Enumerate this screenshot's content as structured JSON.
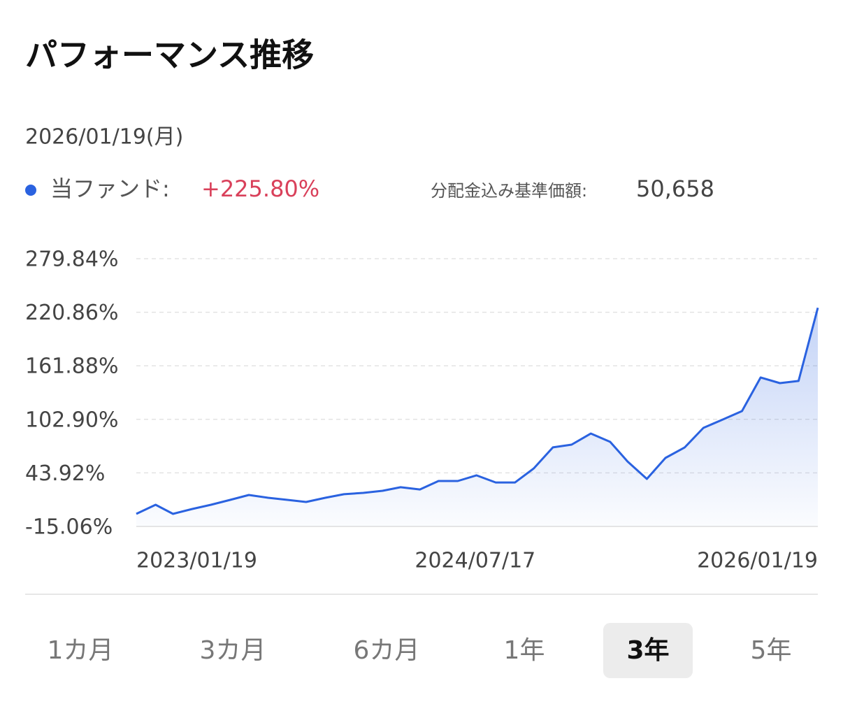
{
  "header": {
    "title": "パフォーマンス推移",
    "date": "2026/01/19(月)"
  },
  "legend": {
    "fund_label": "当ファンド:",
    "fund_value": "+225.80%",
    "price_label": "分配金込み基準価額:",
    "price_value": "50,658"
  },
  "chart_data": {
    "type": "line",
    "x": [
      "2023/01/19",
      "2023/02/19",
      "2023/03/19",
      "2023/04/19",
      "2023/05/19",
      "2023/06/19",
      "2023/07/19",
      "2023/08/19",
      "2023/09/19",
      "2023/10/19",
      "2023/11/19",
      "2023/12/19",
      "2024/01/19",
      "2024/02/19",
      "2024/03/19",
      "2024/04/19",
      "2024/05/19",
      "2024/06/19",
      "2024/07/19",
      "2024/08/19",
      "2024/09/19",
      "2024/10/19",
      "2024/11/19",
      "2024/12/19",
      "2025/01/19",
      "2025/02/19",
      "2025/03/19",
      "2025/04/19",
      "2025/05/19",
      "2025/06/19",
      "2025/07/19",
      "2025/08/19",
      "2025/09/19",
      "2025/10/19",
      "2025/11/19",
      "2025/12/19",
      "2026/01/19"
    ],
    "series": [
      {
        "name": "当ファンド",
        "color": "#2a62e0",
        "values": [
          -1.2,
          8.8,
          -1.2,
          4.2,
          8.8,
          14.2,
          19.6,
          16.5,
          14.2,
          11.9,
          16.5,
          20.4,
          21.9,
          24.2,
          28.1,
          25.7,
          35.0,
          35.0,
          41.2,
          33.4,
          33.4,
          48.8,
          72.0,
          75.0,
          87.3,
          78.1,
          56.5,
          37.3,
          60.4,
          72.0,
          93.5,
          102.7,
          112.0,
          149.0,
          142.8,
          145.2,
          225.8
        ]
      }
    ],
    "xlim": [
      "2023/01/19",
      "2026/01/19"
    ],
    "xticks": [
      "2023/01/19",
      "2024/07/17",
      "2026/01/19"
    ],
    "ylim": [
      -15.06,
      279.84
    ],
    "yticks": [
      {
        "value": -15.06,
        "label": "-15.06%"
      },
      {
        "value": 43.92,
        "label": "43.92%"
      },
      {
        "value": 102.9,
        "label": "102.90%"
      },
      {
        "value": 161.88,
        "label": "161.88%"
      },
      {
        "value": 220.86,
        "label": "220.86%"
      },
      {
        "value": 279.84,
        "label": "279.84%"
      }
    ],
    "grid": true
  },
  "tabs": [
    "1カ月",
    "3カ月",
    "6カ月",
    "1年",
    "3年",
    "5年"
  ]
}
